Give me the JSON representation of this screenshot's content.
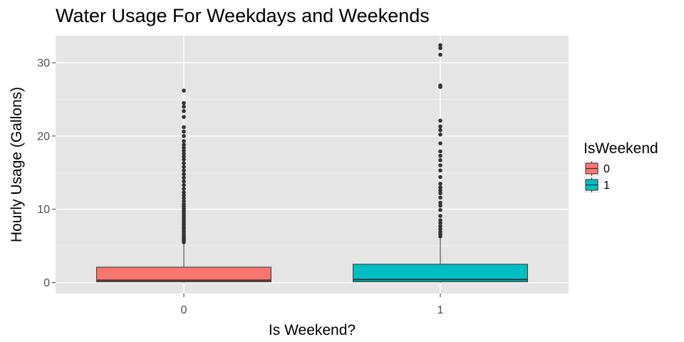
{
  "chart_data": {
    "type": "boxplot",
    "title": "Water Usage For Weekdays and Weekends",
    "xlabel": "Is Weekend?",
    "ylabel": "Hourly Usage (Gallons)",
    "categories": [
      "0",
      "1"
    ],
    "ylim": [
      -1.5,
      33.7
    ],
    "yticks": [
      0,
      10,
      20,
      30
    ],
    "grid": true,
    "legend": {
      "title": "IsWeekend",
      "position": "right",
      "entries": [
        {
          "label": "0",
          "color": "#F8766D"
        },
        {
          "label": "1",
          "color": "#00BFC4"
        }
      ]
    },
    "series": [
      {
        "category": "0",
        "color": "#F8766D",
        "min": 0,
        "q1": 0.1,
        "median": 0.3,
        "q3": 2.1,
        "whisker_high": 5.3,
        "outliers": [
          5.5,
          5.7,
          5.9,
          6.1,
          6.3,
          6.5,
          6.8,
          7.0,
          7.3,
          7.5,
          7.8,
          8.0,
          8.3,
          8.6,
          8.9,
          9.2,
          9.5,
          9.8,
          10.1,
          10.4,
          10.7,
          11.1,
          11.5,
          11.9,
          12.3,
          12.8,
          13.3,
          13.8,
          14.3,
          14.8,
          15.3,
          15.8,
          16.3,
          16.8,
          17.2,
          17.6,
          18.0,
          18.4,
          18.8,
          19.3,
          20.0,
          20.6,
          21.2,
          22.6,
          23.4,
          24.0,
          24.5,
          26.2
        ]
      },
      {
        "category": "1",
        "color": "#00BFC4",
        "min": 0,
        "q1": 0.1,
        "median": 0.4,
        "q3": 2.5,
        "whisker_high": 6.2,
        "outliers": [
          6.3,
          6.6,
          6.9,
          7.3,
          7.7,
          8.1,
          8.5,
          9.1,
          9.9,
          10.5,
          10.9,
          11.6,
          12.2,
          12.6,
          13.0,
          13.5,
          14.4,
          15.3,
          16.0,
          16.7,
          17.3,
          17.9,
          19.0,
          20.2,
          20.8,
          21.3,
          22.1,
          26.7,
          26.9,
          31.1,
          32.0,
          32.4
        ]
      }
    ]
  }
}
